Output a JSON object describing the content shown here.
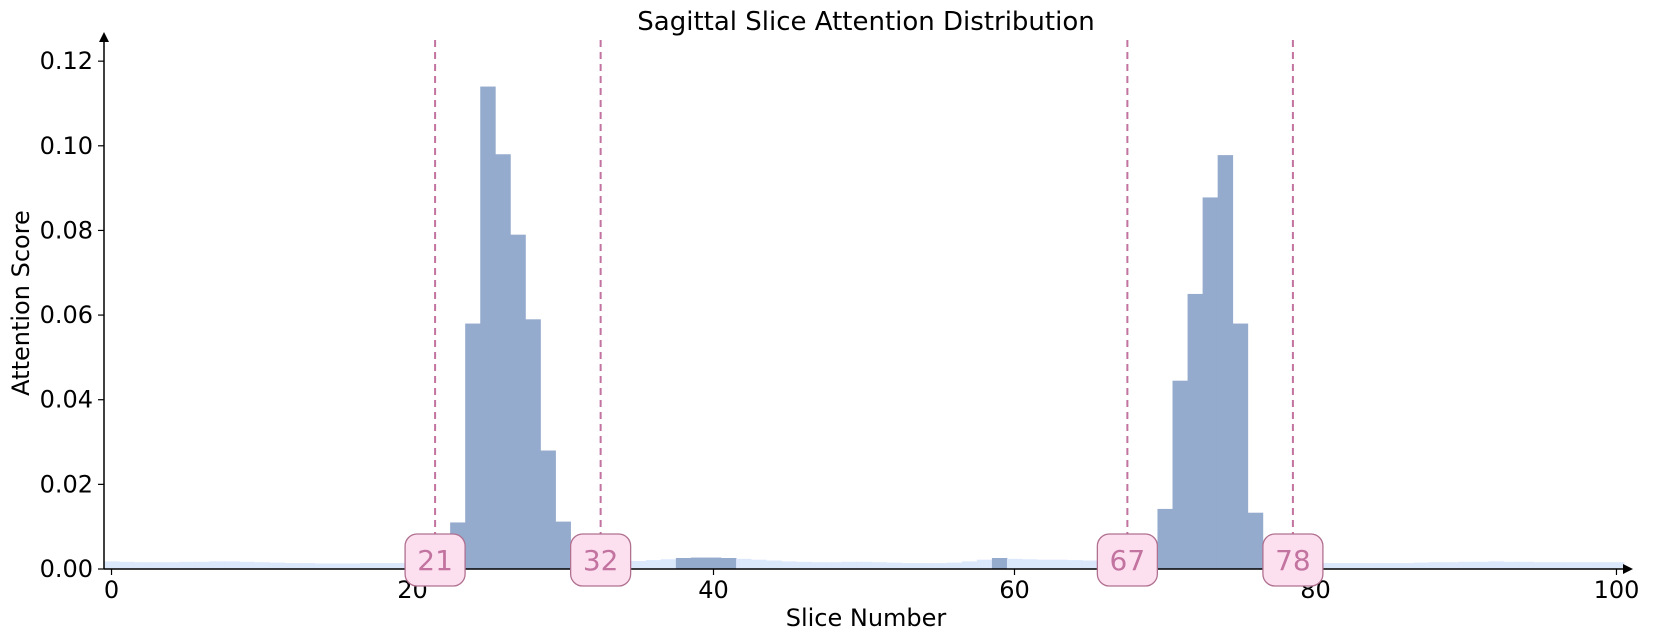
{
  "chart_data": {
    "type": "bar",
    "title": "Sagittal Slice Attention Distribution",
    "xlabel": "Slice Number",
    "ylabel": "Attention Score",
    "xlim": [
      -0.5,
      100.5
    ],
    "ylim": [
      0,
      0.125
    ],
    "xticks": [
      0,
      20,
      40,
      60,
      80,
      100
    ],
    "xtick_labels": [
      "0",
      "20",
      "40",
      "60",
      "80",
      "100"
    ],
    "yticks": [
      0.0,
      0.02,
      0.04,
      0.06,
      0.08,
      0.1,
      0.12
    ],
    "ytick_labels": [
      "0.00",
      "0.02",
      "0.04",
      "0.06",
      "0.08",
      "0.10",
      "0.12"
    ],
    "grid": false,
    "series": [
      {
        "values": [
          0.0018,
          0.0017,
          0.0016,
          0.0016,
          0.0016,
          0.0017,
          0.0017,
          0.0018,
          0.0018,
          0.0017,
          0.0016,
          0.0015,
          0.0014,
          0.0014,
          0.0013,
          0.0013,
          0.0013,
          0.0014,
          0.0014,
          0.0014,
          0.0013,
          0.0012,
          0.0015,
          0.011,
          0.058,
          0.114,
          0.098,
          0.079,
          0.059,
          0.028,
          0.0112,
          0.0025,
          0.0018,
          0.0017,
          0.0018,
          0.0019,
          0.0021,
          0.0023,
          0.0026,
          0.0027,
          0.0027,
          0.0026,
          0.0024,
          0.0022,
          0.002,
          0.0018,
          0.0017,
          0.0016,
          0.0016,
          0.0017,
          0.0017,
          0.0016,
          0.0015,
          0.0014,
          0.0014,
          0.0014,
          0.0015,
          0.0018,
          0.0022,
          0.0026,
          0.0024,
          0.0023,
          0.0022,
          0.0022,
          0.0021,
          0.002,
          0.0019,
          0.0018,
          0.0032,
          0.0065,
          0.0142,
          0.0445,
          0.065,
          0.0878,
          0.0978,
          0.058,
          0.0133,
          0.0025,
          0.0018,
          0.0016,
          0.0015,
          0.0014,
          0.0014,
          0.0014,
          0.0014,
          0.0014,
          0.0014,
          0.0015,
          0.0016,
          0.0016,
          0.0017,
          0.0017,
          0.0018,
          0.0017,
          0.0017,
          0.0016,
          0.0016,
          0.0016,
          0.0016,
          0.0016,
          0.0016
        ]
      }
    ],
    "highlight_threshold": 0.0025,
    "markers": [
      21.5,
      32.5,
      67.5,
      78.5
    ],
    "marker_labels": [
      "21",
      "32",
      "67",
      "78"
    ],
    "colors": {
      "bar_high": "#95abcd",
      "bar_low": "#dbe7fb",
      "marker_line": "#c2739f",
      "marker_text": "#c2739f",
      "marker_box_fill": "#fde0f0",
      "marker_box_stroke": "#b07090",
      "axis": "#000000"
    }
  }
}
